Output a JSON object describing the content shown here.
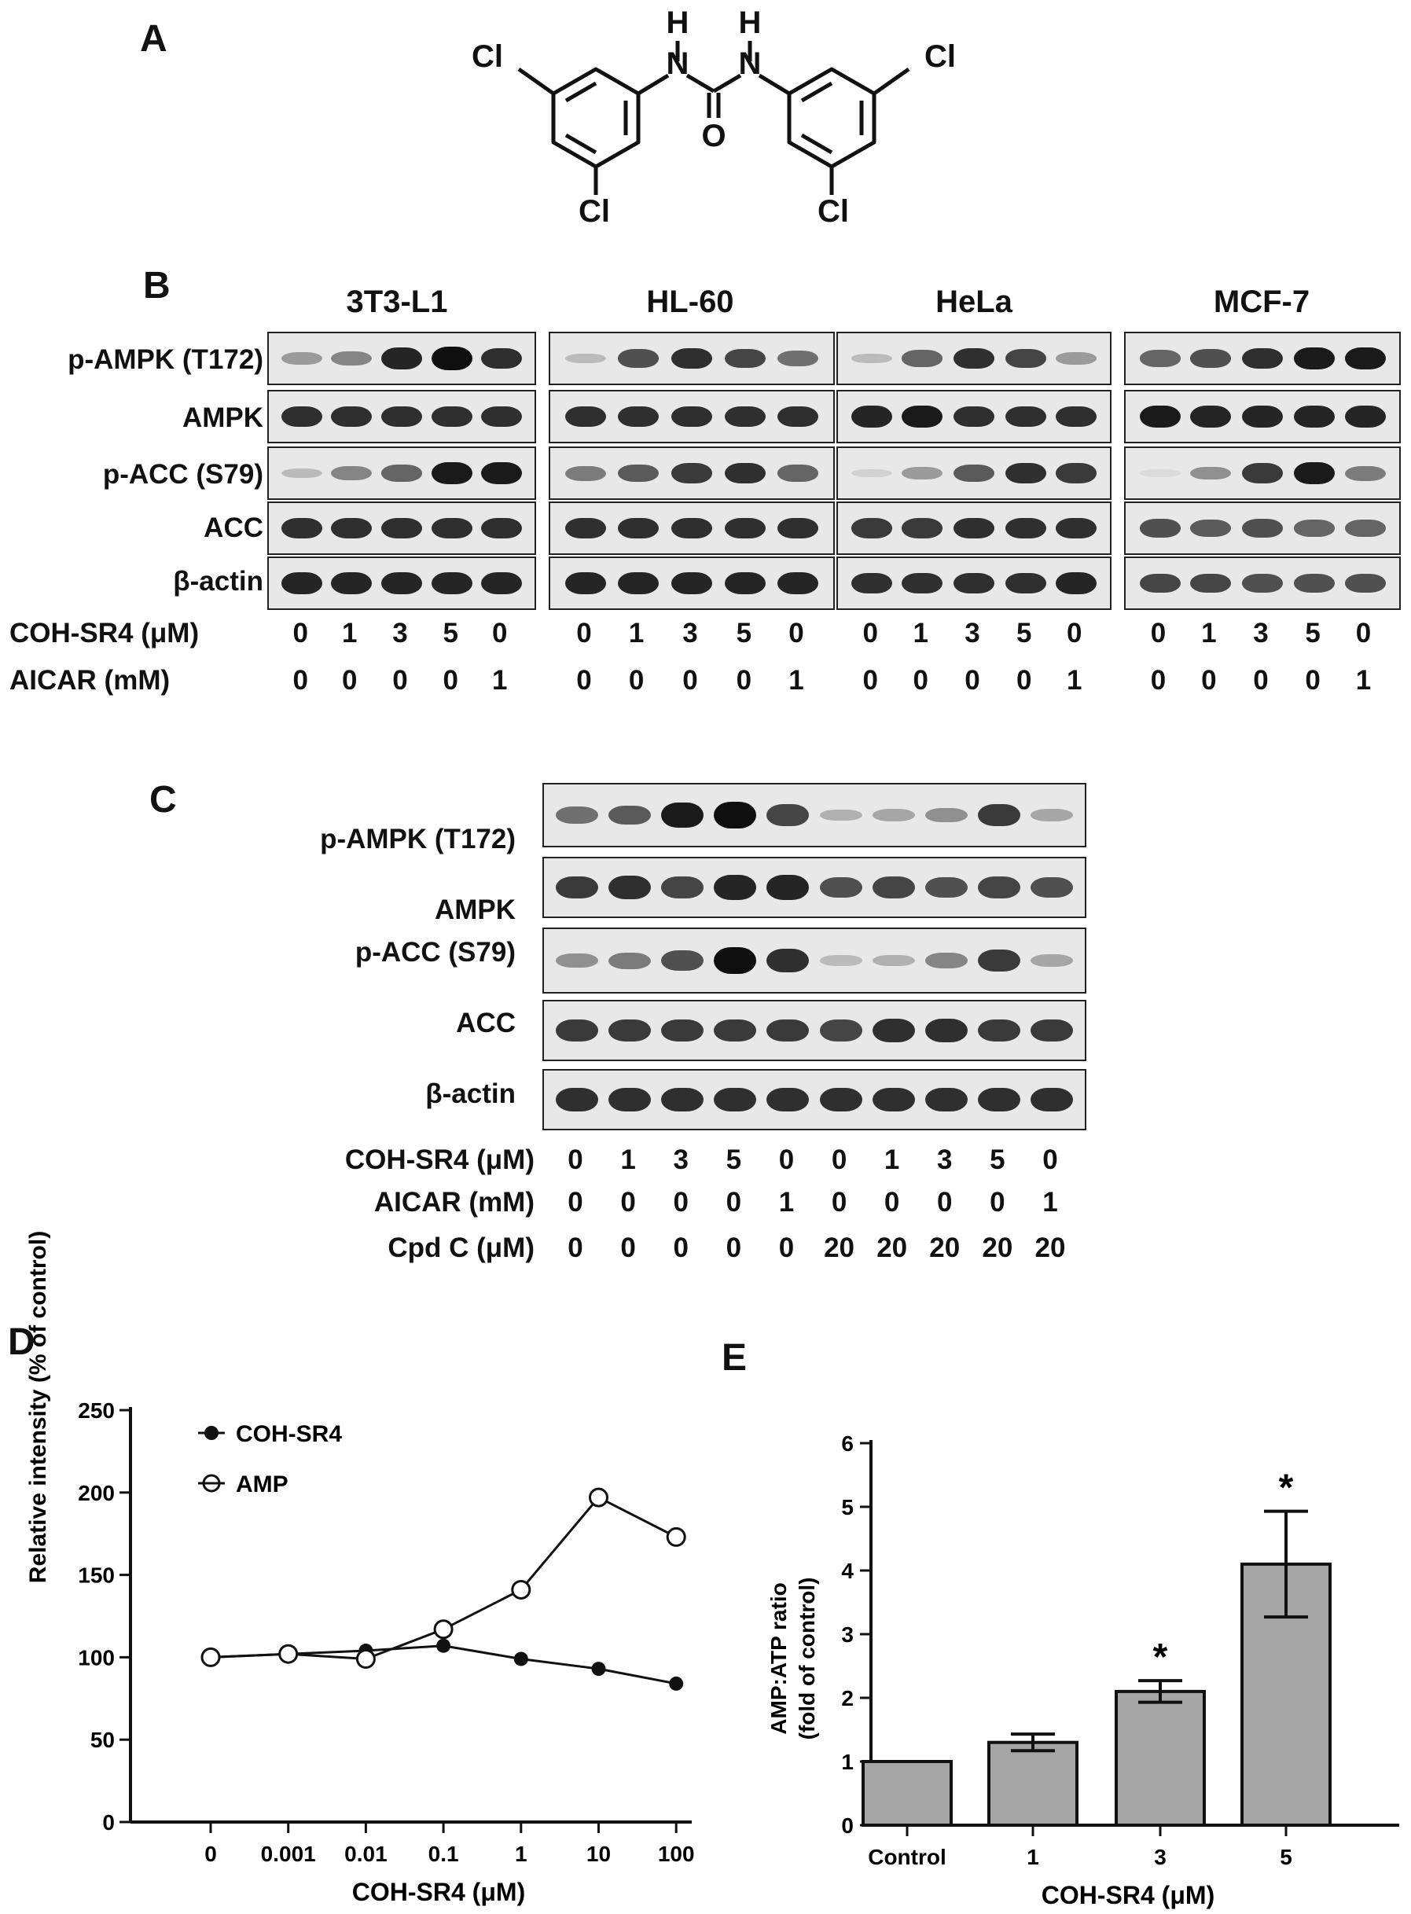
{
  "panels": {
    "a": "A",
    "b": "B",
    "c": "C",
    "d": "D",
    "e": "E"
  },
  "structure": {
    "atoms": {
      "cl_tl": "Cl",
      "cl_tr": "Cl",
      "cl_bl": "Cl",
      "cl_br": "Cl",
      "n_l": "N",
      "n_r": "N",
      "h_l": "H",
      "h_r": "H",
      "o": "O"
    }
  },
  "blot_b": {
    "cell_lines": [
      "3T3-L1",
      "HL-60",
      "HeLa",
      "MCF-7"
    ],
    "rows": [
      "p-AMPK (T172)",
      "AMPK",
      "p-ACC (S79)",
      "ACC",
      "β-actin"
    ],
    "conditions": [
      {
        "label": "COH-SR4 (μM)",
        "values": [
          "0",
          "1",
          "3",
          "5",
          "0"
        ]
      },
      {
        "label": "AICAR (mM)",
        "values": [
          "0",
          "0",
          "0",
          "0",
          "1"
        ]
      }
    ],
    "intensity": [
      [
        [
          0.35,
          0.45,
          0.9,
          1.0,
          0.85
        ],
        [
          0.2,
          0.7,
          0.85,
          0.75,
          0.55
        ],
        [
          0.2,
          0.6,
          0.85,
          0.75,
          0.35
        ],
        [
          0.6,
          0.7,
          0.85,
          0.95,
          0.95
        ]
      ],
      [
        [
          0.85,
          0.85,
          0.85,
          0.85,
          0.85
        ],
        [
          0.85,
          0.85,
          0.85,
          0.85,
          0.85
        ],
        [
          0.9,
          0.95,
          0.85,
          0.85,
          0.85
        ],
        [
          0.95,
          0.9,
          0.9,
          0.9,
          0.9
        ]
      ],
      [
        [
          0.2,
          0.45,
          0.6,
          0.95,
          0.95
        ],
        [
          0.5,
          0.65,
          0.8,
          0.85,
          0.6
        ],
        [
          0.1,
          0.35,
          0.65,
          0.85,
          0.8
        ],
        [
          0.05,
          0.4,
          0.8,
          0.95,
          0.5
        ]
      ],
      [
        [
          0.85,
          0.85,
          0.85,
          0.85,
          0.85
        ],
        [
          0.85,
          0.85,
          0.85,
          0.85,
          0.85
        ],
        [
          0.8,
          0.8,
          0.85,
          0.85,
          0.85
        ],
        [
          0.7,
          0.65,
          0.7,
          0.6,
          0.6
        ]
      ],
      [
        [
          0.9,
          0.9,
          0.9,
          0.9,
          0.9
        ],
        [
          0.9,
          0.9,
          0.9,
          0.9,
          0.9
        ],
        [
          0.85,
          0.85,
          0.85,
          0.85,
          0.9
        ],
        [
          0.75,
          0.75,
          0.7,
          0.7,
          0.7
        ]
      ]
    ]
  },
  "blot_c": {
    "rows": [
      "p-AMPK (T172)",
      "AMPK",
      "p-ACC (S79)",
      "ACC",
      "β-actin"
    ],
    "conditions": [
      {
        "label": "COH-SR4 (μM)",
        "values": [
          "0",
          "1",
          "3",
          "5",
          "0",
          "0",
          "1",
          "3",
          "5",
          "0"
        ]
      },
      {
        "label": "AICAR (mM)",
        "values": [
          "0",
          "0",
          "0",
          "0",
          "1",
          "0",
          "0",
          "0",
          "0",
          "1"
        ]
      },
      {
        "label": "Cpd C (μM)",
        "values": [
          "0",
          "0",
          "0",
          "0",
          "0",
          "20",
          "20",
          "20",
          "20",
          "20"
        ]
      }
    ],
    "intensity": [
      [
        0.55,
        0.65,
        0.95,
        1.0,
        0.75,
        0.25,
        0.3,
        0.4,
        0.8,
        0.3
      ],
      [
        0.8,
        0.85,
        0.75,
        0.9,
        0.9,
        0.7,
        0.75,
        0.7,
        0.75,
        0.7
      ],
      [
        0.4,
        0.5,
        0.7,
        1.0,
        0.85,
        0.2,
        0.25,
        0.45,
        0.8,
        0.3
      ],
      [
        0.8,
        0.8,
        0.8,
        0.8,
        0.8,
        0.75,
        0.85,
        0.85,
        0.8,
        0.8
      ],
      [
        0.85,
        0.85,
        0.85,
        0.85,
        0.85,
        0.85,
        0.85,
        0.85,
        0.85,
        0.85
      ]
    ]
  },
  "chart_data": [
    {
      "type": "line",
      "ylabel": "Relative intensity (% of control)",
      "xlabel": "COH-SR4 (μM)",
      "x": [
        "0",
        "0.001",
        "0.01",
        "0.1",
        "1",
        "10",
        "100"
      ],
      "ylim": [
        0,
        250
      ],
      "yticks": [
        "0",
        "50",
        "100",
        "150",
        "200",
        "250"
      ],
      "legend": "top-left",
      "series": [
        {
          "name": "COH-SR4",
          "marker": "filled",
          "values": [
            100,
            102,
            104,
            107,
            99,
            93,
            84
          ]
        },
        {
          "name": "AMP",
          "marker": "open",
          "values": [
            100,
            102,
            99,
            117,
            141,
            197,
            173
          ]
        }
      ]
    },
    {
      "type": "bar",
      "ylabel": "AMP:ATP ratio",
      "ylabel2": "(fold of control)",
      "xlabel": "COH-SR4 (μM)",
      "categories": [
        "Control",
        "1",
        "3",
        "5"
      ],
      "values": [
        1.0,
        1.3,
        2.1,
        4.1
      ],
      "errors": [
        0,
        0.13,
        0.17,
        0.83
      ],
      "significance": [
        "",
        "",
        "*",
        "*"
      ],
      "ylim": [
        0,
        6
      ],
      "yticks": [
        "0",
        "1",
        "2",
        "3",
        "4",
        "5",
        "6"
      ],
      "bar_color": "#a6a6a6"
    }
  ]
}
